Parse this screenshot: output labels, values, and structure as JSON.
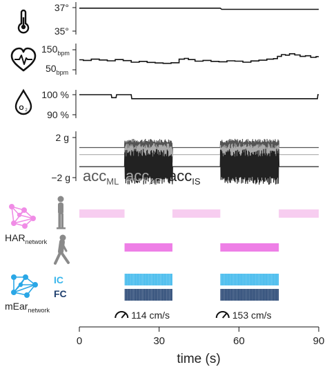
{
  "colors": {
    "trace": "#111111",
    "acc_ml": "#555555",
    "acc_ap": "#aaaaaa",
    "acc_is": "#222222",
    "har_light": "#f7cdf0",
    "har_dark": "#ee7fe6",
    "har_network": "#f08ce6",
    "mear_network": "#2aa7e6",
    "ic": "#38b6ec",
    "fc": "#1f3f6e"
  },
  "icons": {
    "temperature": "thermometer-icon",
    "heart_rate": "heart-pulse-icon",
    "oxygen": "oxygen-drop-icon",
    "standing": "standing-person-icon",
    "walking": "walking-person-icon",
    "speed": "speedometer-icon"
  },
  "chart_data": [
    {
      "type": "line",
      "name": "temperature",
      "unit": "°",
      "ytick_labels": [
        "37°",
        "35°"
      ],
      "ylim": [
        35,
        37
      ],
      "xlim": [
        0,
        90
      ],
      "series": [
        {
          "x": [
            0,
            53,
            53.5,
            90
          ],
          "y": [
            36.95,
            36.95,
            36.85,
            36.85
          ]
        }
      ]
    },
    {
      "type": "line",
      "name": "heart_rate",
      "ytick_labels": [
        {
          "value": "150",
          "unit": "bpm"
        },
        {
          "value": "50",
          "unit": "bpm"
        }
      ],
      "ylim": [
        50,
        150
      ],
      "xlim": [
        0,
        90
      ],
      "series": [
        {
          "x": [
            0,
            3,
            6,
            9,
            12,
            15,
            18,
            21,
            24,
            27,
            30,
            33,
            36,
            39,
            40,
            42,
            45,
            48,
            51,
            54,
            57,
            60,
            63,
            66,
            69,
            72,
            74,
            75,
            77,
            78,
            80,
            82,
            84,
            86,
            88,
            90
          ],
          "y": [
            100,
            97,
            103,
            99,
            95,
            101,
            96,
            88,
            92,
            87,
            84,
            82,
            85,
            103,
            107,
            101,
            93,
            97,
            92,
            90,
            95,
            93,
            88,
            94,
            98,
            103,
            106,
            117,
            126,
            123,
            130,
            124,
            117,
            120,
            112,
            116
          ]
        }
      ]
    },
    {
      "type": "line",
      "name": "spo2",
      "ytick_labels": [
        "100 %",
        "90 %"
      ],
      "ylim": [
        90,
        100
      ],
      "xlim": [
        0,
        90
      ],
      "series": [
        {
          "x": [
            0,
            12,
            12.2,
            13.8,
            14,
            15,
            15.2,
            19.5,
            19.7,
            89.5,
            89.7,
            90
          ],
          "y": [
            100,
            100,
            98.5,
            98.5,
            100,
            100,
            100,
            100,
            98,
            98,
            100,
            100
          ]
        }
      ]
    },
    {
      "type": "line",
      "name": "acceleration",
      "ytick_labels": [
        "2 g",
        "−2 g"
      ],
      "ylim": [
        -2,
        2
      ],
      "xlim": [
        0,
        90
      ],
      "walking_intervals": [
        [
          17,
          35
        ],
        [
          53,
          75
        ]
      ],
      "legend_position": "bottom-left",
      "series": [
        {
          "name": "acc",
          "subscript": "ML",
          "baseline": 1.0,
          "amplitude": 1.1
        },
        {
          "name": "acc",
          "subscript": "AP",
          "baseline": 0.3,
          "amplitude": 1.4
        },
        {
          "name": "acc",
          "subscript": "IS",
          "baseline": -0.9,
          "amplitude": 1.8
        }
      ]
    },
    {
      "type": "timeline",
      "name": "har",
      "label": {
        "main": "HAR",
        "subscript": "network"
      },
      "xlim": [
        0,
        90
      ],
      "rows": [
        {
          "state": "standing",
          "intervals": [
            [
              0,
              17
            ],
            [
              35,
              53
            ],
            [
              75,
              90
            ]
          ]
        },
        {
          "state": "walking",
          "intervals": [
            [
              17,
              35
            ],
            [
              53,
              75
            ]
          ]
        }
      ]
    },
    {
      "type": "timeline",
      "name": "mear",
      "label": {
        "main": "mEar",
        "subscript": "network"
      },
      "xlim": [
        0,
        90
      ],
      "rows": [
        {
          "label": "IC",
          "intervals": [
            [
              17,
              35
            ],
            [
              53,
              75
            ]
          ],
          "events_per_interval": [
            32,
            40
          ]
        },
        {
          "label": "FC",
          "intervals": [
            [
              17,
              35
            ],
            [
              53,
              75
            ]
          ],
          "events_per_interval": [
            32,
            40
          ]
        }
      ],
      "annotations": [
        {
          "x": 26,
          "text": "114 cm/s"
        },
        {
          "x": 64,
          "text": "153 cm/s"
        }
      ]
    }
  ],
  "axis": {
    "xticks": [
      0,
      30,
      60,
      90
    ],
    "xtick_labels": [
      "0",
      "30",
      "60",
      "90"
    ],
    "xlabel": "time (s)",
    "xlim": [
      0,
      90
    ]
  }
}
